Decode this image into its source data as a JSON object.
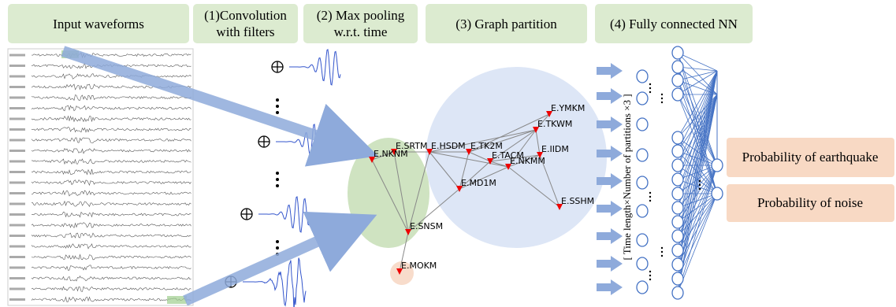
{
  "headers": [
    "Input waveforms",
    "(1)Convolution with filters",
    "(2) Max pooling w.r.t. time",
    "(3) Graph partition",
    "(4) Fully connected NN"
  ],
  "nodes": [
    {
      "label": "E.YMKM"
    },
    {
      "label": "E.TKWM"
    },
    {
      "label": "E.IIDM"
    },
    {
      "label": "E.SRTM"
    },
    {
      "label": "E.HSDM"
    },
    {
      "label": "E.TK2M"
    },
    {
      "label": "E.TACM"
    },
    {
      "label": "E.NKMM"
    },
    {
      "label": "E.NKNM"
    },
    {
      "label": "E.MD1M"
    },
    {
      "label": "E.SSHM"
    },
    {
      "label": "E.SNSM"
    },
    {
      "label": "E.MOKM"
    }
  ],
  "input_label": "[ Time length×Number of partitions ×3 ]",
  "outputs": [
    "Probability of earthquake",
    "Probability of noise"
  ]
}
